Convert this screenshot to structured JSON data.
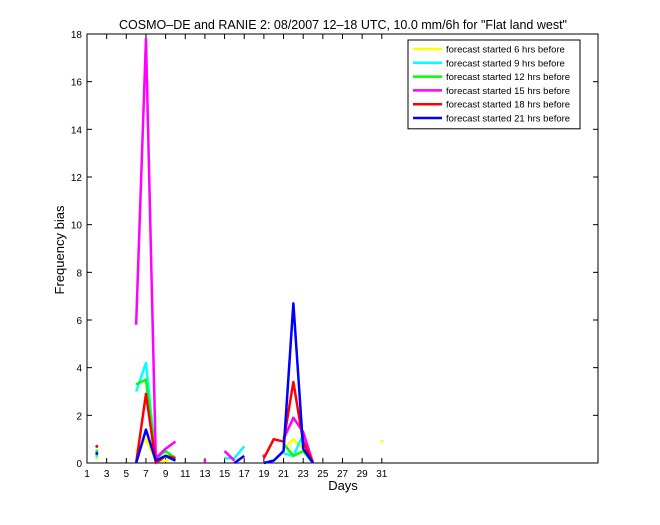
{
  "chart_data": {
    "type": "line",
    "title": "COSMO–DE and RANIE 2: 08/2007 12–18 UTC, 10.0 mm/6h for \"Flat land west\"",
    "xlabel": "Days",
    "ylabel": "Frequency bias",
    "xlim": [
      1,
      53
    ],
    "ylim": [
      0,
      18
    ],
    "x_ticks": [
      1,
      3,
      5,
      7,
      9,
      11,
      13,
      15,
      17,
      19,
      21,
      23,
      25,
      27,
      29,
      31
    ],
    "x_tick_labels": [
      "1",
      "3",
      "5",
      "7",
      "9",
      "11",
      "13",
      "15",
      "17",
      "19",
      "21",
      "23",
      "25",
      "27",
      "29",
      "31"
    ],
    "y_ticks": [
      0,
      2,
      4,
      6,
      8,
      10,
      12,
      14,
      16,
      18
    ],
    "y_tick_labels": [
      "0",
      "2",
      "4",
      "6",
      "8",
      "10",
      "12",
      "14",
      "16",
      "18"
    ],
    "grid": false,
    "legend_position": "top-right",
    "series": [
      {
        "name": "forecast started 6 hrs before",
        "color": "#ffff00",
        "points": [
          [
            2,
            0.2
          ],
          [
            6,
            0.5
          ],
          [
            7,
            1.0
          ],
          [
            8,
            0.1
          ],
          [
            9,
            0.1
          ],
          [
            10,
            0.3
          ],
          [
            21,
            0.6
          ],
          [
            22,
            1.0
          ],
          [
            23,
            0.6
          ],
          [
            24,
            0.0
          ],
          [
            31,
            0.9
          ]
        ]
      },
      {
        "name": "forecast started 9 hrs before",
        "color": "#00ffff",
        "points": [
          [
            2,
            0.3
          ],
          [
            6,
            3.0
          ],
          [
            7,
            4.2
          ],
          [
            8,
            0.1
          ],
          [
            9,
            0.3
          ],
          [
            10,
            0.1
          ],
          [
            15,
            0.2
          ],
          [
            16,
            0.2
          ],
          [
            17,
            0.7
          ],
          [
            21,
            0.4
          ],
          [
            22,
            0.3
          ],
          [
            23,
            1.2
          ],
          [
            24,
            0.0
          ]
        ]
      },
      {
        "name": "forecast started 12 hrs before",
        "color": "#00ff00",
        "points": [
          [
            2,
            0.5
          ],
          [
            6,
            3.3
          ],
          [
            7,
            3.5
          ],
          [
            8,
            0.2
          ],
          [
            9,
            0.5
          ],
          [
            10,
            0.2
          ],
          [
            21,
            0.8
          ],
          [
            22,
            0.3
          ],
          [
            23,
            0.5
          ],
          [
            24,
            0.0
          ]
        ]
      },
      {
        "name": "forecast started 15 hrs before",
        "color": "#ff00ff",
        "points": [
          [
            6,
            5.8
          ],
          [
            7,
            17.8
          ],
          [
            8,
            0.2
          ],
          [
            9,
            0.6
          ],
          [
            10,
            0.9
          ],
          [
            13,
            0.1
          ],
          [
            15,
            0.5
          ],
          [
            16,
            0.1
          ],
          [
            19,
            0.3
          ],
          [
            21,
            1.0
          ],
          [
            22,
            1.9
          ],
          [
            23,
            1.3
          ],
          [
            24,
            0.0
          ]
        ]
      },
      {
        "name": "forecast started 18 hrs before",
        "color": "#ff0000",
        "points": [
          [
            2,
            0.7
          ],
          [
            6,
            0.0
          ],
          [
            7,
            2.9
          ],
          [
            8,
            0.0
          ],
          [
            9,
            0.3
          ],
          [
            10,
            0.2
          ],
          [
            19,
            0.2
          ],
          [
            20,
            1.0
          ],
          [
            21,
            0.9
          ],
          [
            22,
            3.4
          ],
          [
            23,
            0.9
          ],
          [
            24,
            0.0
          ]
        ]
      },
      {
        "name": "forecast started 21 hrs before",
        "color": "#0000ff",
        "points": [
          [
            2,
            0.4
          ],
          [
            6,
            0.0
          ],
          [
            7,
            1.4
          ],
          [
            8,
            0.1
          ],
          [
            9,
            0.3
          ],
          [
            10,
            0.1
          ],
          [
            16,
            0.0
          ],
          [
            17,
            0.3
          ],
          [
            19,
            0.0
          ],
          [
            20,
            0.1
          ],
          [
            21,
            0.5
          ],
          [
            22,
            6.7
          ],
          [
            23,
            0.6
          ],
          [
            24,
            0.0
          ]
        ]
      }
    ]
  }
}
